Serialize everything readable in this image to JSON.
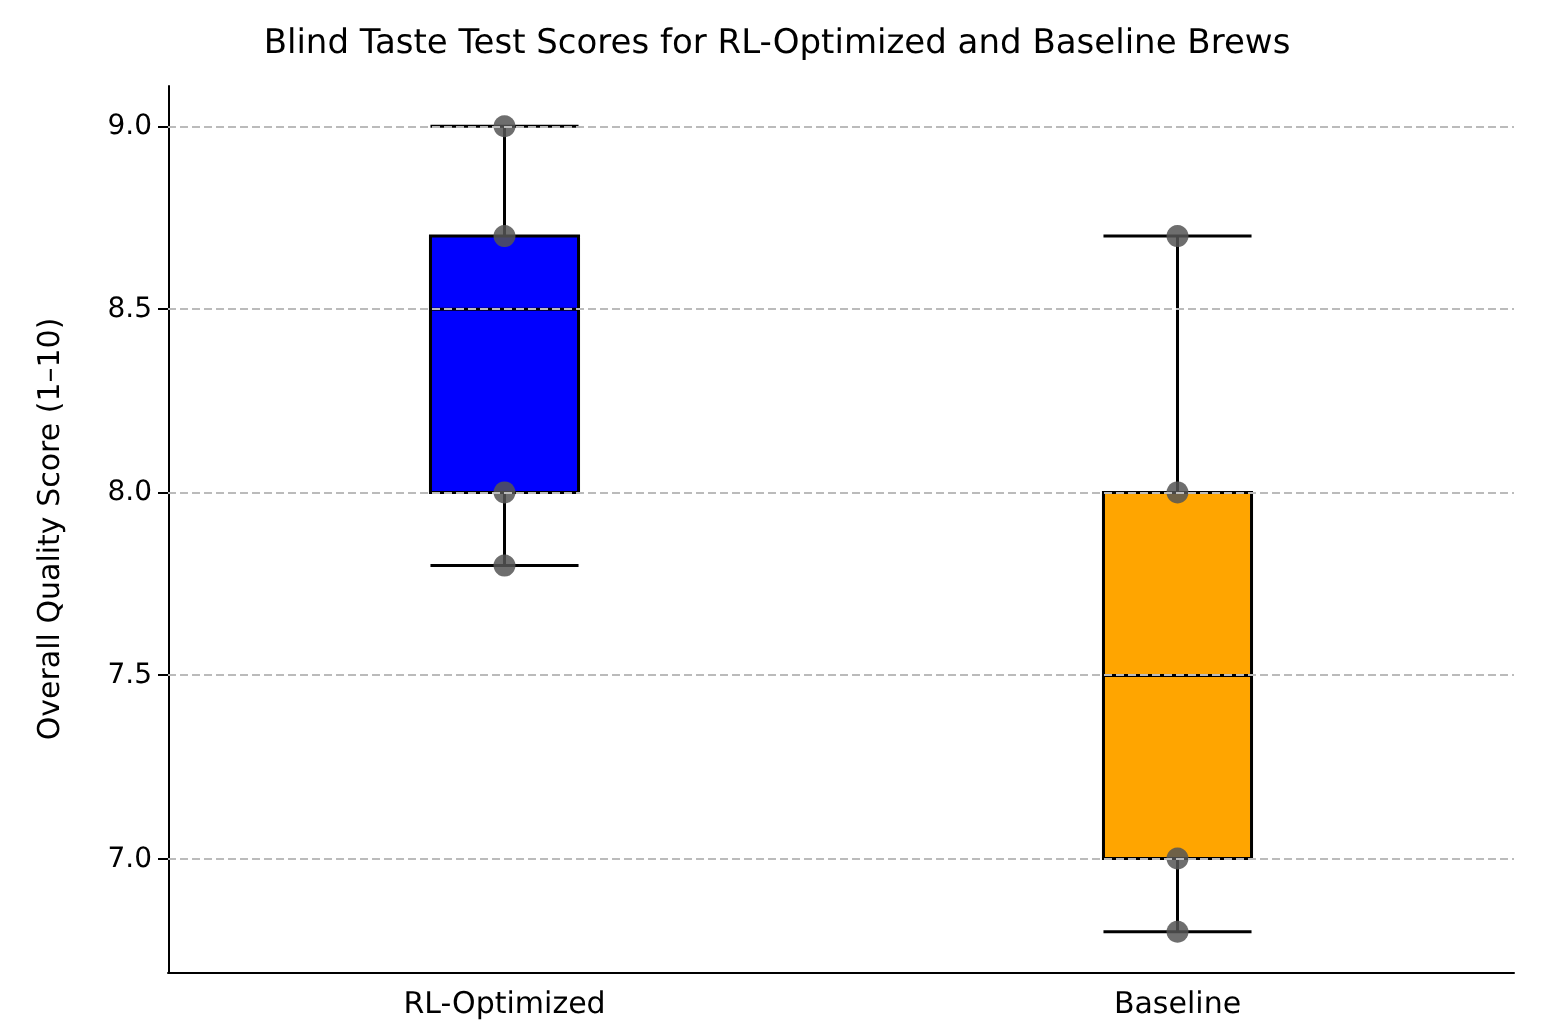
{
  "chart_data": {
    "type": "box",
    "title": "Blind Taste Test Scores for RL-Optimized and Baseline Brews",
    "ylabel": "Overall Quality Score (1–10)",
    "categories": [
      "RL-Optimized",
      "Baseline"
    ],
    "boxes": [
      {
        "low": 7.8,
        "q1": 8.0,
        "median": 8.5,
        "q3": 8.7,
        "high": 9.0
      },
      {
        "low": 6.8,
        "q1": 7.0,
        "median": 7.5,
        "q3": 8.0,
        "high": 8.7
      }
    ],
    "colors": [
      "#0000ff",
      "#ffa500"
    ],
    "series": [
      {
        "type": "scatter",
        "color": "#555555",
        "x": [
          "RL-Optimized",
          "RL-Optimized",
          "RL-Optimized",
          "RL-Optimized",
          "Baseline",
          "Baseline",
          "Baseline",
          "Baseline"
        ],
        "values": [
          9.0,
          8.7,
          8.0,
          7.8,
          8.7,
          8.0,
          7.0,
          6.8
        ]
      }
    ],
    "ylim": [
      6.69,
      9.11
    ],
    "yticks": [
      {
        "value": 7,
        "label": "7.0"
      },
      {
        "value": 7.5,
        "label": "7.5"
      },
      {
        "value": 8,
        "label": "8.0"
      },
      {
        "value": 8.5,
        "label": "8.5"
      },
      {
        "value": 9,
        "label": "9.0"
      }
    ],
    "grid": "y",
    "marker": "circle"
  }
}
